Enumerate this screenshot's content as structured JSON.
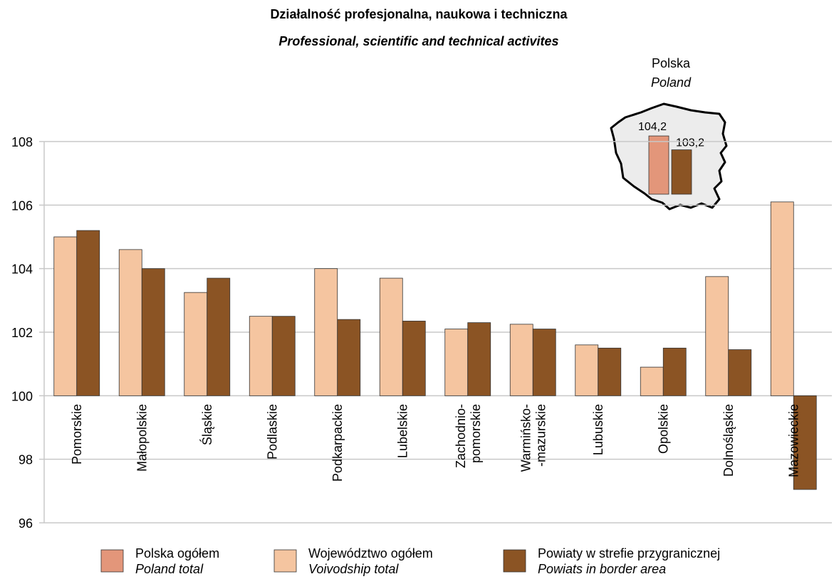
{
  "chart_data": {
    "type": "bar",
    "title": "Działalność profesjonalna, naukowa i techniczna",
    "subtitle": "Professional, scientific and technical activites",
    "categories": [
      "Pomorskie",
      "Małopolskie",
      "Śląskie",
      "Podlaskie",
      "Podkarpackie",
      "Lubelskie",
      "Zachodnio-\npomorskie",
      "Warmińsko-\n-mazurskie",
      "Lubuskie",
      "Opolskie",
      "Dolnośląskie",
      "Mazowieckie"
    ],
    "series": [
      {
        "name": "Województwo ogółem",
        "name_en": "Voivodship total",
        "color": "#f5c5a0",
        "values": [
          105.0,
          104.6,
          103.25,
          102.5,
          104.0,
          103.7,
          102.1,
          102.25,
          101.6,
          100.9,
          103.75,
          106.1
        ]
      },
      {
        "name": "Powiaty w strefie przygranicznej",
        "name_en": "Powiats in border area",
        "color": "#8b5424",
        "values": [
          105.2,
          104.0,
          103.7,
          102.5,
          102.4,
          102.35,
          102.3,
          102.1,
          101.5,
          101.5,
          101.45,
          97.05
        ]
      }
    ],
    "total_series": {
      "name": "Polska ogółem",
      "name_en": "Poland total",
      "color": "#e3967a"
    },
    "inset": {
      "title": "Polska",
      "subtitle": "Poland",
      "values": [
        104.2,
        103.2
      ],
      "value_labels": [
        "104,2",
        "103,2"
      ]
    },
    "ylim": [
      96,
      108
    ],
    "yticks": [
      96,
      98,
      100,
      102,
      104,
      106,
      108
    ],
    "grid": true
  }
}
